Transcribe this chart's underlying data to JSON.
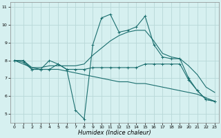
{
  "xlabel": "Humidex (Indice chaleur)",
  "bg_color": "#d6f0f0",
  "grid_color": "#b8d8d8",
  "line_color": "#1a6e6e",
  "xlim": [
    -0.5,
    23.5
  ],
  "ylim": [
    4.5,
    11.3
  ],
  "yticks": [
    5,
    6,
    7,
    8,
    9,
    10,
    11
  ],
  "xticks": [
    0,
    1,
    2,
    3,
    4,
    5,
    6,
    7,
    8,
    9,
    10,
    11,
    12,
    13,
    14,
    15,
    16,
    17,
    18,
    19,
    20,
    21,
    22,
    23
  ],
  "line1_x": [
    0,
    1,
    2,
    3,
    4,
    5,
    6,
    7,
    8,
    9,
    10,
    11,
    12,
    13,
    14,
    15,
    16,
    17,
    18,
    19,
    20,
    21,
    22,
    23
  ],
  "line1_y": [
    8.0,
    7.9,
    7.5,
    7.5,
    7.5,
    7.8,
    7.5,
    7.5,
    7.5,
    7.6,
    7.6,
    7.6,
    7.6,
    7.6,
    7.6,
    7.8,
    7.8,
    7.8,
    7.8,
    7.8,
    6.9,
    6.3,
    5.8,
    5.7
  ],
  "line2_x": [
    0,
    1,
    2,
    3,
    4,
    5,
    6,
    7,
    8,
    9,
    10,
    11,
    12,
    13,
    14,
    15,
    16,
    17,
    18,
    19,
    20,
    21,
    22,
    23
  ],
  "line2_y": [
    8.0,
    8.0,
    7.5,
    7.5,
    8.0,
    7.8,
    7.5,
    5.2,
    4.7,
    8.9,
    10.4,
    10.6,
    9.6,
    9.7,
    9.9,
    10.5,
    8.9,
    8.2,
    8.1,
    8.1,
    7.0,
    6.3,
    5.8,
    5.7
  ],
  "line3_x": [
    0,
    1,
    2,
    3,
    4,
    5,
    6,
    7,
    8,
    9,
    10,
    11,
    12,
    13,
    14,
    15,
    16,
    17,
    18,
    19,
    20,
    21,
    22,
    23
  ],
  "line3_y": [
    8.0,
    8.0,
    7.6,
    7.6,
    7.7,
    7.7,
    7.7,
    7.7,
    7.8,
    8.3,
    8.7,
    9.1,
    9.4,
    9.6,
    9.7,
    9.7,
    9.1,
    8.4,
    8.2,
    8.1,
    7.7,
    7.2,
    6.5,
    6.2
  ],
  "line4_x": [
    0,
    1,
    2,
    3,
    4,
    5,
    6,
    7,
    8,
    9,
    10,
    11,
    12,
    13,
    14,
    15,
    16,
    17,
    18,
    19,
    20,
    21,
    22,
    23
  ],
  "line4_y": [
    8.0,
    7.8,
    7.6,
    7.5,
    7.5,
    7.5,
    7.4,
    7.3,
    7.2,
    7.1,
    7.0,
    6.9,
    6.8,
    6.8,
    6.7,
    6.7,
    6.6,
    6.5,
    6.4,
    6.3,
    6.2,
    6.1,
    5.9,
    5.7
  ]
}
